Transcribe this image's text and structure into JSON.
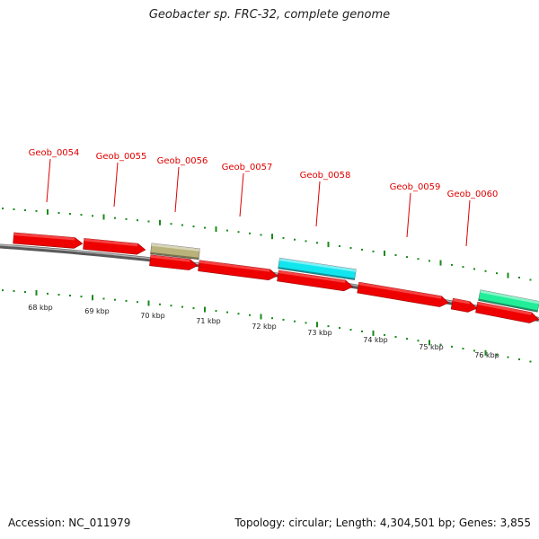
{
  "title": "Geobacter sp. FRC-32, complete genome",
  "accession": "Accession: NC_011979",
  "summary": "Topology: circular; Length: 4,304,501 bp; Genes: 3,855",
  "colors": {
    "cds": "#ee0000",
    "trna_like": "#b9b27a",
    "highlight_cyan": "#11e6ef",
    "highlight_green": "#22ee99",
    "backbone": "#888888",
    "ticks": "#1a8a1a",
    "labels": "#dd0000"
  },
  "gene_labels": [
    "Geob_0054",
    "Geob_0055",
    "Geob_0056",
    "Geob_0057",
    "Geob_0058",
    "Geob_0059",
    "Geob_0060"
  ],
  "scale_labels": [
    "68 kbp",
    "69 kbp",
    "70 kbp",
    "71 kbp",
    "72 kbp",
    "73 kbp",
    "74 kbp",
    "75 kbp",
    "76 kbp"
  ]
}
